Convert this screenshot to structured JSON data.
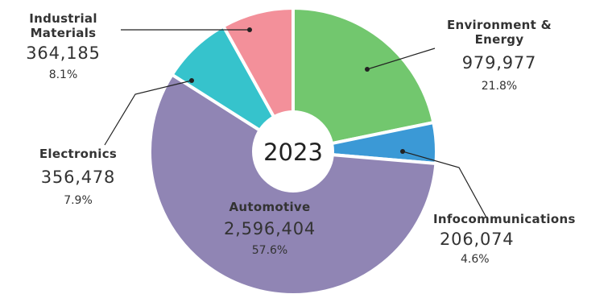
{
  "chart_data": {
    "type": "pie",
    "center_label": "2023",
    "slices": [
      {
        "name": "Environment & Energy",
        "value": 979977,
        "value_label": "979,977",
        "percent": "21.8%",
        "color": "#72c76e"
      },
      {
        "name": "Infocommunications",
        "value": 206074,
        "value_label": "206,074",
        "percent": "4.6%",
        "color": "#3b99d6"
      },
      {
        "name": "Automotive",
        "value": 2596404,
        "value_label": "2,596,404",
        "percent": "57.6%",
        "color": "#9085b4"
      },
      {
        "name": "Electronics",
        "value": 356478,
        "value_label": "356,478",
        "percent": "7.9%",
        "color": "#36c3cc"
      },
      {
        "name": "Industrial Materials",
        "value": 364185,
        "value_label": "364,185",
        "percent": "8.1%",
        "color": "#f3909a"
      }
    ]
  }
}
